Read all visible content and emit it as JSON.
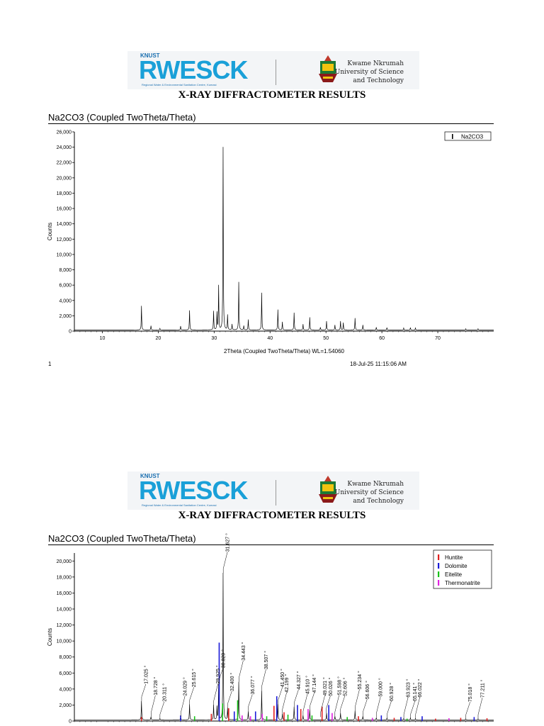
{
  "header": {
    "knust_small": "KNUST",
    "rwesck_logo": "RWESCK",
    "rwesck_sub": "Regional Water & Environmental Sanitation Centre, Kumasi",
    "university_line1": "Kwame Nkrumah",
    "university_line2": "University of Science",
    "university_line3": "and Technology",
    "results_title": "X-RAY DIFFRACTOMETER RESULTS"
  },
  "page1": {
    "chart_title": "Na2CO3 (Coupled TwoTheta/Theta)",
    "page_number": "1",
    "timestamp": "18-Jul-25 11:15:06 AM"
  },
  "page2": {
    "chart_title": "Na2CO3 (Coupled TwoTheta/Theta)"
  },
  "chart_data": [
    {
      "type": "line",
      "ylabel": "Counts",
      "xlabel": "2Theta (Coupled TwoTheta/Theta) WL=1.54060",
      "xlim": [
        5,
        80
      ],
      "ylim": [
        0,
        26000
      ],
      "x_ticks": [
        "10",
        "20",
        "30",
        "40",
        "50",
        "60",
        "70"
      ],
      "x_tick_values": [
        10,
        20,
        30,
        40,
        50,
        60,
        70
      ],
      "y_ticks": [
        "0",
        "2,000",
        "4,000",
        "6,000",
        "8,000",
        "10,000",
        "12,000",
        "14,000",
        "16,000",
        "18,000",
        "20,000",
        "22,000",
        "24,000",
        "26,000"
      ],
      "y_tick_values": [
        0,
        2000,
        4000,
        6000,
        8000,
        10000,
        12000,
        14000,
        16000,
        18000,
        20000,
        22000,
        24000,
        26000
      ],
      "legend": [
        "Na2CO3"
      ],
      "legend_position": "top-right",
      "baseline": 150,
      "peaks": [
        {
          "x": 17.0,
          "y": 3300
        },
        {
          "x": 18.7,
          "y": 700
        },
        {
          "x": 20.3,
          "y": 350
        },
        {
          "x": 24.0,
          "y": 650
        },
        {
          "x": 25.6,
          "y": 2700
        },
        {
          "x": 29.9,
          "y": 2600
        },
        {
          "x": 30.5,
          "y": 2400
        },
        {
          "x": 30.8,
          "y": 5900
        },
        {
          "x": 31.6,
          "y": 24000
        },
        {
          "x": 32.4,
          "y": 2100
        },
        {
          "x": 33.2,
          "y": 900
        },
        {
          "x": 34.4,
          "y": 6400
        },
        {
          "x": 35.3,
          "y": 700
        },
        {
          "x": 36.1,
          "y": 1500
        },
        {
          "x": 38.5,
          "y": 5000
        },
        {
          "x": 41.4,
          "y": 2800
        },
        {
          "x": 42.2,
          "y": 1200
        },
        {
          "x": 44.3,
          "y": 2400
        },
        {
          "x": 45.9,
          "y": 900
        },
        {
          "x": 47.1,
          "y": 1800
        },
        {
          "x": 49.0,
          "y": 500
        },
        {
          "x": 50.1,
          "y": 1300
        },
        {
          "x": 51.6,
          "y": 800
        },
        {
          "x": 52.6,
          "y": 1300
        },
        {
          "x": 53.1,
          "y": 1100
        },
        {
          "x": 55.2,
          "y": 1700
        },
        {
          "x": 56.6,
          "y": 800
        },
        {
          "x": 59.0,
          "y": 500
        },
        {
          "x": 60.9,
          "y": 450
        },
        {
          "x": 63.9,
          "y": 400
        },
        {
          "x": 65.1,
          "y": 450
        },
        {
          "x": 66.0,
          "y": 400
        },
        {
          "x": 75.0,
          "y": 300
        },
        {
          "x": 77.2,
          "y": 300
        }
      ]
    },
    {
      "type": "line",
      "ylabel": "Counts",
      "xlim": [
        5,
        80
      ],
      "ylim": [
        0,
        21000
      ],
      "y_ticks": [
        "0",
        "2,000",
        "4,000",
        "6,000",
        "8,000",
        "10,000",
        "12,000",
        "14,000",
        "16,000",
        "18,000",
        "20,000"
      ],
      "y_tick_values": [
        0,
        2000,
        4000,
        6000,
        8000,
        10000,
        12000,
        14000,
        16000,
        18000,
        20000
      ],
      "legend": [
        {
          "name": "Huntite",
          "color": "#e02020"
        },
        {
          "name": "Dolomite",
          "color": "#1a1ad8"
        },
        {
          "name": "Eitelite",
          "color": "#19c219"
        },
        {
          "name": "Thermonatrite",
          "color": "#e020e0"
        }
      ],
      "legend_position": "top-right",
      "baseline": 150,
      "peaks": [
        {
          "x": 17.0,
          "y": 2500
        },
        {
          "x": 18.7,
          "y": 550
        },
        {
          "x": 20.3,
          "y": 300
        },
        {
          "x": 24.0,
          "y": 500
        },
        {
          "x": 25.6,
          "y": 2100
        },
        {
          "x": 29.9,
          "y": 2000
        },
        {
          "x": 30.5,
          "y": 1800
        },
        {
          "x": 30.8,
          "y": 4500
        },
        {
          "x": 31.6,
          "y": 18500
        },
        {
          "x": 32.4,
          "y": 1600
        },
        {
          "x": 34.4,
          "y": 4900
        },
        {
          "x": 36.1,
          "y": 1200
        },
        {
          "x": 38.5,
          "y": 3800
        },
        {
          "x": 41.4,
          "y": 2100
        },
        {
          "x": 42.2,
          "y": 900
        },
        {
          "x": 44.3,
          "y": 1800
        },
        {
          "x": 45.9,
          "y": 700
        },
        {
          "x": 47.1,
          "y": 1400
        },
        {
          "x": 50.1,
          "y": 1000
        },
        {
          "x": 51.6,
          "y": 600
        },
        {
          "x": 52.6,
          "y": 1000
        },
        {
          "x": 55.2,
          "y": 1300
        },
        {
          "x": 56.6,
          "y": 600
        },
        {
          "x": 59.0,
          "y": 400
        },
        {
          "x": 60.9,
          "y": 350
        },
        {
          "x": 63.9,
          "y": 300
        },
        {
          "x": 65.1,
          "y": 350
        },
        {
          "x": 66.0,
          "y": 300
        },
        {
          "x": 75.0,
          "y": 250
        },
        {
          "x": 77.2,
          "y": 250
        }
      ],
      "reference_sticks": [
        {
          "x": 17.0,
          "y": 500,
          "phase": "Huntite"
        },
        {
          "x": 24.0,
          "y": 700,
          "phase": "Dolomite"
        },
        {
          "x": 26.5,
          "y": 600,
          "phase": "Eitelite"
        },
        {
          "x": 29.5,
          "y": 900,
          "phase": "Huntite"
        },
        {
          "x": 30.9,
          "y": 9800,
          "phase": "Dolomite"
        },
        {
          "x": 31.5,
          "y": 2200,
          "phase": "Eitelite"
        },
        {
          "x": 32.6,
          "y": 1600,
          "phase": "Huntite"
        },
        {
          "x": 33.6,
          "y": 1200,
          "phase": "Dolomite"
        },
        {
          "x": 34.2,
          "y": 2600,
          "phase": "Eitelite"
        },
        {
          "x": 35.0,
          "y": 700,
          "phase": "Thermonatrite"
        },
        {
          "x": 36.5,
          "y": 600,
          "phase": "Thermonatrite"
        },
        {
          "x": 37.4,
          "y": 1200,
          "phase": "Dolomite"
        },
        {
          "x": 38.6,
          "y": 900,
          "phase": "Thermonatrite"
        },
        {
          "x": 39.4,
          "y": 600,
          "phase": "Eitelite"
        },
        {
          "x": 40.7,
          "y": 1900,
          "phase": "Huntite"
        },
        {
          "x": 41.2,
          "y": 3100,
          "phase": "Dolomite"
        },
        {
          "x": 42.5,
          "y": 1100,
          "phase": "Huntite"
        },
        {
          "x": 43.2,
          "y": 800,
          "phase": "Eitelite"
        },
        {
          "x": 44.9,
          "y": 2000,
          "phase": "Dolomite"
        },
        {
          "x": 45.5,
          "y": 1500,
          "phase": "Huntite"
        },
        {
          "x": 46.8,
          "y": 1500,
          "phase": "Thermonatrite"
        },
        {
          "x": 47.5,
          "y": 700,
          "phase": "Eitelite"
        },
        {
          "x": 49.3,
          "y": 1800,
          "phase": "Huntite"
        },
        {
          "x": 50.5,
          "y": 2000,
          "phase": "Dolomite"
        },
        {
          "x": 51.1,
          "y": 1000,
          "phase": "Thermonatrite"
        },
        {
          "x": 53.8,
          "y": 500,
          "phase": "Eitelite"
        },
        {
          "x": 55.8,
          "y": 600,
          "phase": "Huntite"
        },
        {
          "x": 58.3,
          "y": 400,
          "phase": "Thermonatrite"
        },
        {
          "x": 59.9,
          "y": 700,
          "phase": "Dolomite"
        },
        {
          "x": 62.2,
          "y": 400,
          "phase": "Huntite"
        },
        {
          "x": 63.4,
          "y": 500,
          "phase": "Dolomite"
        },
        {
          "x": 64.5,
          "y": 300,
          "phase": "Eitelite"
        },
        {
          "x": 67.2,
          "y": 600,
          "phase": "Dolomite"
        },
        {
          "x": 69.6,
          "y": 300,
          "phase": "Huntite"
        },
        {
          "x": 72.0,
          "y": 350,
          "phase": "Thermonatrite"
        },
        {
          "x": 74.1,
          "y": 400,
          "phase": "Huntite"
        },
        {
          "x": 76.5,
          "y": 500,
          "phase": "Dolomite"
        },
        {
          "x": 78.8,
          "y": 350,
          "phase": "Huntite"
        }
      ],
      "peak_labels": [
        {
          "x": 17.025,
          "y": 2500,
          "text": "17.025 °"
        },
        {
          "x": 18.728,
          "y": 550,
          "text": "18.728 °"
        },
        {
          "x": 20.311,
          "y": 300,
          "text": "20.311 °"
        },
        {
          "x": 24.029,
          "y": 500,
          "text": "24.029 °"
        },
        {
          "x": 25.615,
          "y": 2100,
          "text": "25.615 °"
        },
        {
          "x": 29.925,
          "y": 2000,
          "text": "29.925 °"
        },
        {
          "x": 30.82,
          "y": 4500,
          "text": "30.820 °"
        },
        {
          "x": 31.627,
          "y": 18500,
          "text": "31.627 °"
        },
        {
          "x": 32.4,
          "y": 1600,
          "text": "32.400 °"
        },
        {
          "x": 34.443,
          "y": 4900,
          "text": "34.443 °"
        },
        {
          "x": 36.077,
          "y": 1200,
          "text": "36.077 °"
        },
        {
          "x": 38.507,
          "y": 3800,
          "text": "38.507 °"
        },
        {
          "x": 41.45,
          "y": 2100,
          "text": "41.450 °"
        },
        {
          "x": 42.199,
          "y": 900,
          "text": "42.199 °"
        },
        {
          "x": 44.327,
          "y": 1800,
          "text": "44.327 °"
        },
        {
          "x": 45.91,
          "y": 700,
          "text": "45.910 °"
        },
        {
          "x": 47.144,
          "y": 1400,
          "text": "47.144 °"
        },
        {
          "x": 49.021,
          "y": 500,
          "text": "49.021 °"
        },
        {
          "x": 50.026,
          "y": 1000,
          "text": "50.026 °"
        },
        {
          "x": 51.598,
          "y": 600,
          "text": "51.598 °"
        },
        {
          "x": 52.606,
          "y": 1000,
          "text": "52.606 °"
        },
        {
          "x": 55.234,
          "y": 1300,
          "text": "55.234 °"
        },
        {
          "x": 56.606,
          "y": 600,
          "text": "56.606 °"
        },
        {
          "x": 59.0,
          "y": 400,
          "text": "59.000 °"
        },
        {
          "x": 60.928,
          "y": 350,
          "text": "60.928 °"
        },
        {
          "x": 63.923,
          "y": 300,
          "text": "63.923 °"
        },
        {
          "x": 65.141,
          "y": 350,
          "text": "65.141 °"
        },
        {
          "x": 66.022,
          "y": 300,
          "text": "66.022 °"
        },
        {
          "x": 75.018,
          "y": 250,
          "text": "75.018 °"
        },
        {
          "x": 77.211,
          "y": 250,
          "text": "77.211 °"
        }
      ]
    }
  ]
}
